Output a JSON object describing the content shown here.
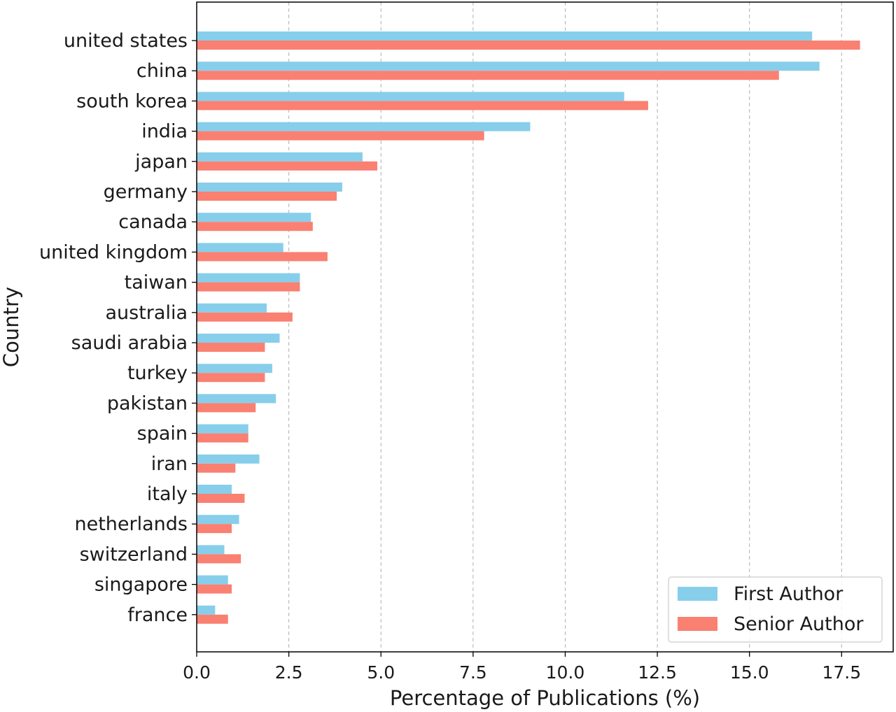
{
  "chart_data": {
    "type": "bar",
    "orientation": "horizontal",
    "categories": [
      "united states",
      "china",
      "south korea",
      "india",
      "japan",
      "germany",
      "canada",
      "united kingdom",
      "taiwan",
      "australia",
      "saudi arabia",
      "turkey",
      "pakistan",
      "spain",
      "iran",
      "italy",
      "netherlands",
      "switzerland",
      "singapore",
      "france"
    ],
    "series": [
      {
        "name": "First Author",
        "color": "#87CEEB",
        "values": [
          16.7,
          16.9,
          11.6,
          9.05,
          4.5,
          3.95,
          3.1,
          2.35,
          2.8,
          1.9,
          2.25,
          2.05,
          2.15,
          1.4,
          1.7,
          0.95,
          1.15,
          0.75,
          0.85,
          0.5
        ]
      },
      {
        "name": "Senior Author",
        "color": "#FA8072",
        "values": [
          18.0,
          15.8,
          12.25,
          7.8,
          4.9,
          3.8,
          3.15,
          3.55,
          2.8,
          2.6,
          1.85,
          1.85,
          1.6,
          1.4,
          1.05,
          1.3,
          0.95,
          1.2,
          0.95,
          0.85
        ]
      }
    ],
    "xlabel": "Percentage of Publications (%)",
    "ylabel": "Country",
    "xlim": [
      0,
      18.9
    ],
    "xticks": [
      "0.0",
      "2.5",
      "5.0",
      "7.5",
      "10.0",
      "12.5",
      "15.0",
      "17.5"
    ],
    "grid": "x-dashed",
    "legend_position": "lower-right"
  }
}
